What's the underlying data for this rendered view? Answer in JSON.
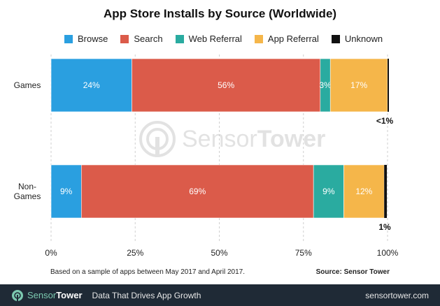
{
  "chart_data": {
    "type": "bar",
    "orientation": "horizontal",
    "stacked": true,
    "title": "App Store Installs by Source (Worldwide)",
    "categories": [
      "Games",
      "Non-Games"
    ],
    "category_label_lines": [
      [
        "Games"
      ],
      [
        "Non-",
        "Games"
      ]
    ],
    "series": [
      {
        "name": "Browse",
        "color": "#2a9fe0",
        "values": [
          24,
          9
        ],
        "labels": [
          "24%",
          "9%"
        ]
      },
      {
        "name": "Search",
        "color": "#db5b4a",
        "values": [
          56,
          69
        ],
        "labels": [
          "56%",
          "69%"
        ]
      },
      {
        "name": "Web Referral",
        "color": "#2aaba0",
        "values": [
          3,
          9
        ],
        "labels": [
          "3%",
          "9%"
        ]
      },
      {
        "name": "App Referral",
        "color": "#f5b64a",
        "values": [
          17,
          12
        ],
        "labels": [
          "17%",
          "12%"
        ]
      },
      {
        "name": "Unknown",
        "color": "#111111",
        "values": [
          0.4,
          0.8
        ],
        "labels": [
          "<1%",
          "1%"
        ]
      }
    ],
    "xlim": [
      0,
      100
    ],
    "xticks": [
      "0%",
      "25%",
      "50%",
      "75%",
      "100%"
    ],
    "grid": "vertical dashed",
    "legend_position": "top"
  },
  "note": "Based on a sample of apps between May 2017 and April 2017.",
  "source": "Source: Sensor Tower",
  "watermark": {
    "text_light": "Sensor",
    "text_bold": "Tower"
  },
  "footer": {
    "brand_light": "Sensor",
    "brand_bold": "Tower",
    "tagline": "Data That Drives App Growth",
    "site": "sensortower.com",
    "background": "#1f2a36"
  }
}
